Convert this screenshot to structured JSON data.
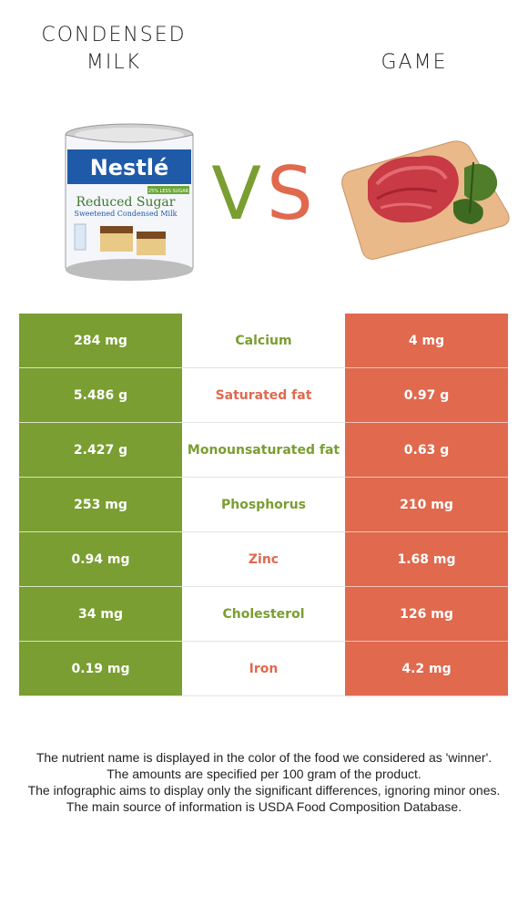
{
  "foods": {
    "left": {
      "name": "CONDENSED MILK",
      "color": "#7a9e31"
    },
    "right": {
      "name": "GAME",
      "color": "#e0694e"
    }
  },
  "vs": {
    "v": "V",
    "s": "S"
  },
  "can_label": {
    "brand": "Nestlé",
    "line1": "Reduced Sugar",
    "line2": "Sweetened Condensed Milk",
    "badge": "25% LESS SUGAR"
  },
  "nutrients": [
    {
      "left": "284 mg",
      "name": "Calcium",
      "right": "4 mg",
      "winner": "left"
    },
    {
      "left": "5.486 g",
      "name": "Saturated fat",
      "right": "0.97 g",
      "winner": "right"
    },
    {
      "left": "2.427 g",
      "name": "Monounsaturated fat",
      "right": "0.63 g",
      "winner": "left"
    },
    {
      "left": "253 mg",
      "name": "Phosphorus",
      "right": "210 mg",
      "winner": "left"
    },
    {
      "left": "0.94 mg",
      "name": "Zinc",
      "right": "1.68 mg",
      "winner": "right"
    },
    {
      "left": "34 mg",
      "name": "Cholesterol",
      "right": "126 mg",
      "winner": "left"
    },
    {
      "left": "0.19 mg",
      "name": "Iron",
      "right": "4.2 mg",
      "winner": "right"
    }
  ],
  "footer": {
    "line1": "The nutrient name is displayed in the color of the food we considered as 'winner'.",
    "line2": "The amounts are specified per 100 gram of the product.",
    "line3": "The infographic aims to display only the significant differences, ignoring minor ones.",
    "line4": "The main source of information is USDA Food Composition Database."
  }
}
